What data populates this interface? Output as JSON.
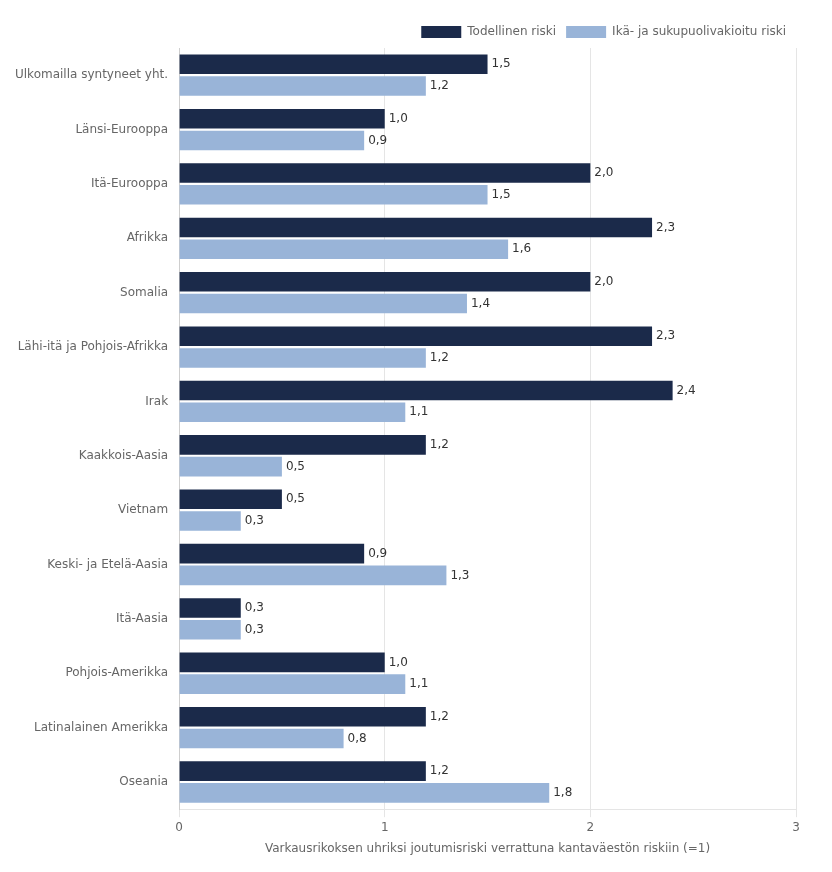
{
  "chart_data": {
    "type": "bar",
    "orientation": "horizontal",
    "categories": [
      "Ulkomailla syntyneet yht.",
      "Länsi-Eurooppa",
      "Itä-Eurooppa",
      "Afrikka",
      "Somalia",
      "Lähi-itä ja Pohjois-Afrikka",
      "Irak",
      "Kaakkois-Aasia",
      "Vietnam",
      "Keski- ja Etelä-Aasia",
      "Itä-Aasia",
      "Pohjois-Amerikka",
      "Latinalainen Amerikka",
      "Oseania"
    ],
    "series": [
      {
        "name": "Todellinen riski",
        "color": "#1b2a4a",
        "values": [
          1.5,
          1.0,
          2.0,
          2.3,
          2.0,
          2.3,
          2.4,
          1.2,
          0.5,
          0.9,
          0.3,
          1.0,
          1.2,
          1.2
        ],
        "value_labels": [
          "1,5",
          "1,0",
          "2,0",
          "2,3",
          "2,0",
          "2,3",
          "2,4",
          "1,2",
          "0,5",
          "0,9",
          "0,3",
          "1,0",
          "1,2",
          "1,2"
        ]
      },
      {
        "name": "Ikä- ja sukupuolivakioitu riski",
        "color": "#99b4d8",
        "values": [
          1.2,
          0.9,
          1.5,
          1.6,
          1.4,
          1.2,
          1.1,
          0.5,
          0.3,
          1.3,
          0.3,
          1.1,
          0.8,
          1.8
        ],
        "value_labels": [
          "1,2",
          "0,9",
          "1,5",
          "1,6",
          "1,4",
          "1,2",
          "1,1",
          "0,5",
          "0,3",
          "1,3",
          "0,3",
          "1,1",
          "0,8",
          "1,8"
        ]
      }
    ],
    "xlabel": "Varkausrikoksen uhriksi joutumisriski verrattuna kantaväestön riskiin (=1)",
    "xlim": [
      0,
      3
    ],
    "xticks": [
      0,
      1,
      2,
      3
    ],
    "grid": true,
    "legend": "upper right",
    "data_labels": true
  }
}
